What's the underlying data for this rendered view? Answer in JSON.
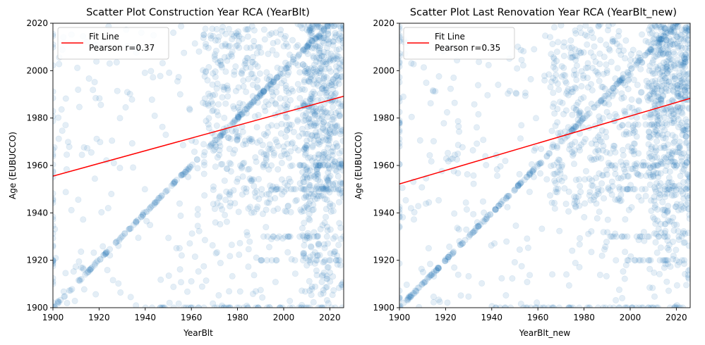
{
  "colors": {
    "point": "#1f77b4",
    "fit": "#ff0000"
  },
  "chart_data": [
    {
      "type": "scatter",
      "title": "Scatter Plot Construction Year RCA (YearBlt)",
      "xlabel": "YearBlt",
      "ylabel": "Age (EUBUCCO)",
      "xlim": [
        1900,
        2026
      ],
      "ylim": [
        1900,
        2020
      ],
      "xticks": [
        "1900",
        "1920",
        "1940",
        "1960",
        "1980",
        "2000",
        "2020"
      ],
      "yticks": [
        "1900",
        "1920",
        "1940",
        "1960",
        "1980",
        "2000",
        "2020"
      ],
      "legend_position": "upper-left",
      "legend": [
        "Fit Line",
        "Pearson r=0.37"
      ],
      "fit_line": {
        "x": [
          1900,
          2026
        ],
        "y": [
          1955.5,
          1989.2
        ]
      },
      "diagonal_start": 1900,
      "point_alpha": 0.12,
      "grid": false
    },
    {
      "type": "scatter",
      "title": "Scatter Plot Last Renovation Year RCA (YearBlt_new)",
      "xlabel": "YearBlt_new",
      "ylabel": "Age (EUBUCCO)",
      "xlim": [
        1900,
        2026
      ],
      "ylim": [
        1900,
        2020
      ],
      "xticks": [
        "1900",
        "1920",
        "1940",
        "1960",
        "1980",
        "2000",
        "2020"
      ],
      "yticks": [
        "1900",
        "1920",
        "1940",
        "1960",
        "1980",
        "2000",
        "2020"
      ],
      "legend_position": "upper-left",
      "legend": [
        "Fit Line",
        "Pearson r=0.35"
      ],
      "fit_line": {
        "x": [
          1900,
          2026
        ],
        "y": [
          1952.2,
          1988.3
        ]
      },
      "diagonal_start": 1900,
      "point_alpha": 0.12,
      "grid": false
    }
  ]
}
